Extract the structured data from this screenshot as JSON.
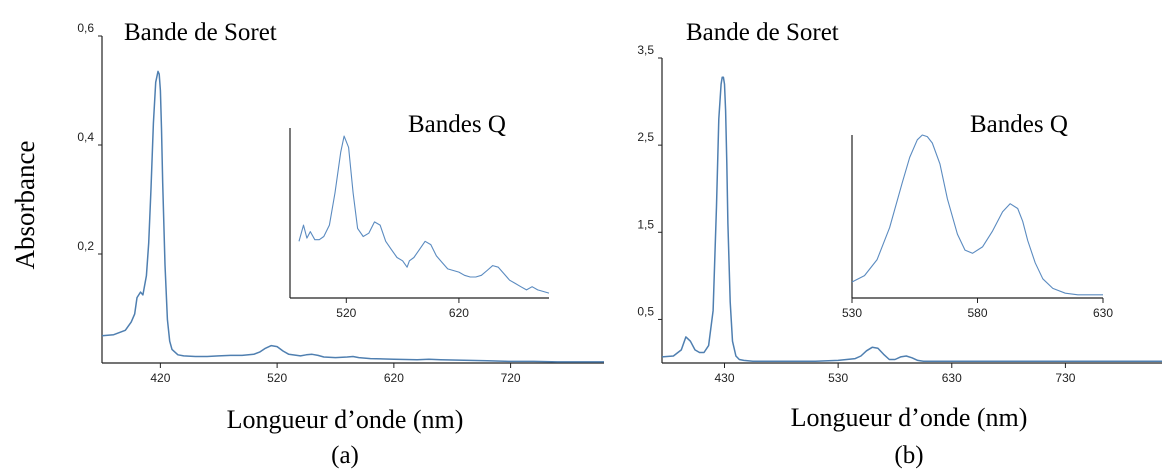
{
  "colors": {
    "spectrum": "#4f7fb0",
    "axis": "#222222"
  },
  "figure": {
    "ylabel": "Absorbance",
    "panels": [
      {
        "id": "a",
        "letter": "(a)",
        "xlabel": "Longueur d’onde (nm)",
        "soret_label": "Bande de Soret",
        "q_label": "Bandes Q"
      },
      {
        "id": "b",
        "letter": "(b)",
        "xlabel": "Longueur d’onde (nm)",
        "soret_label": "Bande de Soret",
        "q_label": "Bandes Q"
      }
    ]
  },
  "chart_data": [
    {
      "type": "line",
      "panel": "(a) main",
      "xlabel": "Longueur d’onde (nm)",
      "ylabel": "Absorbance",
      "xlim": [
        370,
        800
      ],
      "ylim": [
        0,
        0.6
      ],
      "xticks": [
        420,
        520,
        620,
        720
      ],
      "xtick_labels": [
        "420",
        "520",
        "620",
        "720"
      ],
      "yticks": [
        0.2,
        0.4,
        0.6
      ],
      "ytick_labels": [
        "0,2",
        "0,4",
        "0,6"
      ],
      "annotations": [
        "Bande de Soret"
      ],
      "x": [
        370,
        380,
        390,
        395,
        398,
        400,
        403,
        405,
        408,
        410,
        412,
        414,
        416,
        418,
        419,
        420,
        421,
        422,
        424,
        426,
        428,
        430,
        435,
        440,
        450,
        460,
        470,
        480,
        490,
        500,
        505,
        510,
        515,
        520,
        525,
        530,
        540,
        545,
        550,
        555,
        560,
        570,
        580,
        585,
        590,
        600,
        620,
        640,
        650,
        660,
        680,
        700,
        720,
        740,
        760,
        780,
        800
      ],
      "y": [
        0.05,
        0.052,
        0.06,
        0.075,
        0.09,
        0.12,
        0.13,
        0.125,
        0.16,
        0.22,
        0.32,
        0.44,
        0.515,
        0.535,
        0.53,
        0.5,
        0.43,
        0.33,
        0.18,
        0.08,
        0.04,
        0.025,
        0.015,
        0.013,
        0.012,
        0.012,
        0.013,
        0.014,
        0.014,
        0.016,
        0.02,
        0.027,
        0.032,
        0.03,
        0.022,
        0.016,
        0.013,
        0.015,
        0.016,
        0.014,
        0.011,
        0.01,
        0.011,
        0.012,
        0.01,
        0.008,
        0.007,
        0.006,
        0.007,
        0.006,
        0.005,
        0.004,
        0.003,
        0.003,
        0.002,
        0.002,
        0.002
      ]
    },
    {
      "type": "line",
      "panel": "(a) inset",
      "title": "Bandes Q",
      "xlim": [
        470,
        700
      ],
      "xticks": [
        520,
        620
      ],
      "xtick_labels": [
        "520",
        "620"
      ],
      "x": [
        478,
        482,
        485,
        488,
        492,
        496,
        500,
        505,
        510,
        515,
        518,
        522,
        526,
        530,
        535,
        540,
        545,
        550,
        555,
        560,
        565,
        570,
        574,
        576,
        580,
        585,
        590,
        595,
        600,
        605,
        610,
        615,
        620,
        625,
        630,
        635,
        640,
        645,
        650,
        655,
        660,
        665,
        670,
        675,
        680,
        685,
        690,
        695,
        700
      ],
      "y": [
        0.3,
        0.4,
        0.32,
        0.36,
        0.31,
        0.31,
        0.33,
        0.4,
        0.6,
        0.85,
        0.95,
        0.88,
        0.6,
        0.38,
        0.33,
        0.35,
        0.42,
        0.4,
        0.3,
        0.25,
        0.2,
        0.18,
        0.14,
        0.18,
        0.2,
        0.25,
        0.3,
        0.28,
        0.21,
        0.17,
        0.13,
        0.12,
        0.11,
        0.09,
        0.08,
        0.08,
        0.09,
        0.12,
        0.15,
        0.14,
        0.1,
        0.06,
        0.04,
        0.02,
        0.0,
        0.02,
        0.0,
        -0.01,
        -0.02
      ]
    },
    {
      "type": "line",
      "panel": "(b) main",
      "xlabel": "Longueur d’onde (nm)",
      "ylim": [
        0,
        3.5
      ],
      "xlim": [
        375,
        815
      ],
      "xticks": [
        430,
        530,
        630,
        730
      ],
      "xtick_labels": [
        "430",
        "530",
        "630",
        "730"
      ],
      "yticks": [
        0.5,
        1.5,
        2.5,
        3.5
      ],
      "ytick_labels": [
        "0,5",
        "1,5",
        "2,5",
        "3,5"
      ],
      "annotations": [
        "Bande de Soret"
      ],
      "x": [
        375,
        385,
        392,
        396,
        400,
        404,
        408,
        412,
        416,
        420,
        423,
        425,
        427,
        428,
        429,
        430,
        431,
        432,
        433,
        435,
        437,
        440,
        443,
        447,
        455,
        470,
        490,
        510,
        530,
        545,
        550,
        555,
        560,
        565,
        570,
        575,
        580,
        585,
        590,
        595,
        600,
        605,
        610,
        620,
        640,
        660,
        700,
        740,
        780,
        815
      ],
      "y": [
        0.07,
        0.08,
        0.15,
        0.3,
        0.25,
        0.15,
        0.12,
        0.12,
        0.2,
        0.6,
        1.8,
        2.8,
        3.2,
        3.28,
        3.28,
        3.2,
        2.9,
        2.3,
        1.6,
        0.7,
        0.25,
        0.08,
        0.04,
        0.03,
        0.02,
        0.02,
        0.02,
        0.02,
        0.03,
        0.05,
        0.08,
        0.14,
        0.18,
        0.17,
        0.1,
        0.04,
        0.04,
        0.07,
        0.08,
        0.06,
        0.03,
        0.02,
        0.02,
        0.02,
        0.02,
        0.02,
        0.02,
        0.02,
        0.02,
        0.02
      ]
    },
    {
      "type": "line",
      "panel": "(b) inset",
      "title": "Bandes Q",
      "xlim": [
        530,
        630
      ],
      "xticks": [
        530,
        580,
        630
      ],
      "xtick_labels": [
        "530",
        "580",
        "630"
      ],
      "x": [
        530,
        535,
        540,
        545,
        550,
        553,
        556,
        558,
        560,
        562,
        565,
        568,
        572,
        575,
        578,
        582,
        586,
        590,
        593,
        596,
        598,
        600,
        603,
        606,
        610,
        615,
        620,
        625,
        630
      ],
      "y": [
        0.08,
        0.12,
        0.22,
        0.42,
        0.7,
        0.86,
        0.97,
        1.0,
        0.99,
        0.95,
        0.82,
        0.6,
        0.38,
        0.28,
        0.26,
        0.3,
        0.4,
        0.52,
        0.57,
        0.54,
        0.46,
        0.34,
        0.2,
        0.1,
        0.04,
        0.01,
        0.0,
        0.0,
        0.0
      ]
    }
  ]
}
